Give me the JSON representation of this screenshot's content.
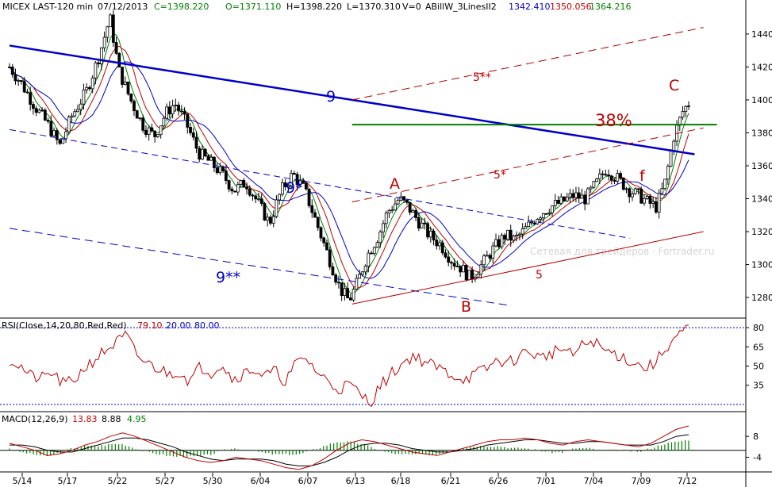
{
  "header": {
    "symbol": "MICEX LAST-120 min",
    "date": "07/12/2013",
    "close": "C=1398.220",
    "open": "O=1371.110",
    "high": "H=1398.220",
    "low": "L=1370.310",
    "volume": "V=0",
    "indicator": "ABillW_3LinesII2",
    "ind_blue": "1342.410",
    "ind_red": "1350.056",
    "ind_green": "1364.216"
  },
  "colors": {
    "blue": "#0000c8",
    "red": "#c00000",
    "green": "#008000",
    "olive": "#5a7800",
    "line_dark_red": "#b00000"
  },
  "watermark": "Сетевая для трейдеров · Fortrader.ru",
  "rsi_header": {
    "label": "RSI(Close,14,20,80,Red,Red)",
    "value": "79.10",
    "lower": "20.00",
    "upper": "80.00"
  },
  "macd_header": {
    "label": "MACD(12,26,9)",
    "macd": "13.83",
    "signal": "8.88",
    "hist": "4.95"
  },
  "annotations": {
    "nine": "9",
    "nine_star": "9*",
    "nine_2star": "9**",
    "five": "5",
    "five_star": "5*",
    "five_2star": "5**",
    "a": "A",
    "b": "B",
    "c": "C",
    "f": "f",
    "fib": "38%"
  },
  "chart_data": [
    {
      "type": "candlestick",
      "title": "MICEX LAST-120 min",
      "x_tick_labels": [
        "5/14",
        "5/17",
        "5/22",
        "5/27",
        "5/30",
        "6/04",
        "6/07",
        "6/13",
        "6/18",
        "6/21",
        "6/26",
        "7/01",
        "7/04",
        "7/09",
        "7/12"
      ],
      "y_tick_labels": [
        "1440",
        "1420",
        "1400",
        "1380",
        "1360",
        "1340",
        "1320",
        "1300",
        "1280"
      ],
      "ylim": [
        1268,
        1452
      ],
      "close_path": [
        [
          0,
          1420
        ],
        [
          0.4,
          1410
        ],
        [
          0.9,
          1395
        ],
        [
          1.3,
          1385
        ],
        [
          1.7,
          1372
        ],
        [
          2.1,
          1390
        ],
        [
          2.6,
          1405
        ],
        [
          3.0,
          1425
        ],
        [
          3.4,
          1450
        ],
        [
          3.7,
          1418
        ],
        [
          4.1,
          1400
        ],
        [
          4.5,
          1385
        ],
        [
          4.9,
          1378
        ],
        [
          5.3,
          1392
        ],
        [
          5.6,
          1398
        ],
        [
          6.0,
          1385
        ],
        [
          6.4,
          1368
        ],
        [
          6.8,
          1362
        ],
        [
          7.2,
          1355
        ],
        [
          7.6,
          1345
        ],
        [
          8.0,
          1350
        ],
        [
          8.4,
          1338
        ],
        [
          8.8,
          1325
        ],
        [
          9.2,
          1345
        ],
        [
          9.6,
          1355
        ],
        [
          10.0,
          1345
        ],
        [
          10.4,
          1325
        ],
        [
          10.8,
          1305
        ],
        [
          11.2,
          1285
        ],
        [
          11.5,
          1278
        ],
        [
          11.8,
          1290
        ],
        [
          12.1,
          1305
        ],
        [
          12.5,
          1318
        ],
        [
          12.8,
          1332
        ],
        [
          13.2,
          1340
        ],
        [
          13.5,
          1335
        ],
        [
          13.9,
          1325
        ],
        [
          14.2,
          1318
        ],
        [
          14.6,
          1312
        ],
        [
          15.0,
          1302
        ],
        [
          15.3,
          1298
        ],
        [
          15.6,
          1292
        ],
        [
          16.0,
          1300
        ],
        [
          16.4,
          1310
        ],
        [
          16.8,
          1318
        ],
        [
          17.1,
          1315
        ],
        [
          17.5,
          1322
        ],
        [
          17.9,
          1330
        ],
        [
          18.3,
          1335
        ],
        [
          18.7,
          1338
        ],
        [
          19.1,
          1342
        ],
        [
          19.5,
          1340
        ],
        [
          19.9,
          1350
        ],
        [
          20.2,
          1358
        ],
        [
          20.6,
          1352
        ],
        [
          21.0,
          1345
        ],
        [
          21.3,
          1342
        ],
        [
          21.6,
          1338
        ],
        [
          21.9,
          1335
        ],
        [
          22.2,
          1350
        ],
        [
          22.5,
          1378
        ],
        [
          22.8,
          1393
        ],
        [
          23.0,
          1398
        ]
      ],
      "series": [
        {
          "name": "ABillW_3LinesII2 (blue)",
          "last": 1342.41
        },
        {
          "name": "ABillW_3LinesII2 (red)",
          "last": 1350.056
        },
        {
          "name": "ABillW_3LinesII2 (green)",
          "last": 1364.216
        }
      ],
      "lines": [
        {
          "label": "9",
          "from": [
            0,
            1433
          ],
          "to": [
            23.2,
            1367
          ]
        },
        {
          "label": "9*",
          "from": [
            0,
            1382
          ],
          "to": [
            21.0,
            1316
          ]
        },
        {
          "label": "9**",
          "from": [
            0,
            1322
          ],
          "to": [
            17.0,
            1275
          ]
        },
        {
          "label": "5",
          "from": [
            11.6,
            1276
          ],
          "to": [
            23.5,
            1320
          ]
        },
        {
          "label": "5*",
          "from": [
            11.6,
            1338
          ],
          "to": [
            23.5,
            1383
          ]
        },
        {
          "label": "5**",
          "from": [
            11.6,
            1400
          ],
          "to": [
            23.5,
            1444
          ]
        },
        {
          "label": "38%",
          "level": 1385,
          "from_x": 11.6,
          "to_x": 23.5
        }
      ],
      "wave_labels": [
        {
          "label": "A",
          "x": 13.3,
          "y": 1354
        },
        {
          "label": "B",
          "x": 15.5,
          "y": 1278
        },
        {
          "label": "C",
          "x": 22.5,
          "y": 1405
        },
        {
          "label": "f",
          "x": 21.3,
          "y": 1359
        }
      ]
    },
    {
      "type": "line",
      "title": "RSI(Close,14,20,80,Red,Red)",
      "y_tick_labels": [
        "80",
        "65",
        "50",
        "35"
      ],
      "ylim": [
        15,
        85
      ],
      "reference_levels": [
        20,
        80
      ],
      "last": 79.1,
      "values": [
        55,
        50,
        42,
        40,
        45,
        36,
        38,
        48,
        55,
        62,
        68,
        74,
        58,
        52,
        48,
        44,
        46,
        38,
        50,
        45,
        52,
        40,
        44,
        48,
        42,
        46,
        38,
        52,
        56,
        45,
        38,
        32,
        36,
        28,
        22,
        35,
        44,
        52,
        58,
        54,
        50,
        46,
        42,
        40,
        44,
        48,
        55,
        52,
        58,
        62,
        56,
        60,
        64,
        58,
        66,
        70,
        62,
        60,
        56,
        52,
        48,
        54,
        66,
        74,
        79
      ]
    },
    {
      "type": "line",
      "title": "MACD(12,26,9)",
      "y_tick_labels": [
        "8",
        "-4"
      ],
      "ylim": [
        -12,
        14
      ],
      "series": [
        {
          "name": "MACD",
          "last": 13.83,
          "values": [
            4,
            2,
            0,
            -3,
            -2,
            0,
            3,
            5,
            8,
            10,
            8,
            5,
            2,
            -1,
            -4,
            -6,
            -7,
            -6,
            -4,
            -5,
            -6,
            -8,
            -10,
            -11,
            -9,
            -5,
            0,
            4,
            6,
            5,
            3,
            1,
            -1,
            -2,
            -3,
            -1,
            1,
            3,
            5,
            6,
            6,
            7,
            6,
            4,
            3,
            5,
            6,
            5,
            4,
            3,
            2,
            4,
            8,
            12,
            14
          ]
        },
        {
          "name": "Signal",
          "last": 8.88,
          "values": [
            3,
            3,
            2,
            0,
            -1,
            -1,
            1,
            3,
            5,
            7,
            7,
            6,
            4,
            2,
            -1,
            -3,
            -5,
            -6,
            -5,
            -5,
            -5,
            -6,
            -8,
            -9,
            -9,
            -7,
            -4,
            0,
            3,
            4,
            4,
            3,
            1,
            0,
            -1,
            -1,
            0,
            1,
            3,
            4,
            5,
            6,
            6,
            5,
            4,
            4,
            5,
            5,
            4,
            3,
            3,
            3,
            5,
            8,
            9
          ]
        },
        {
          "name": "Histogram",
          "last": 4.95
        }
      ]
    }
  ]
}
